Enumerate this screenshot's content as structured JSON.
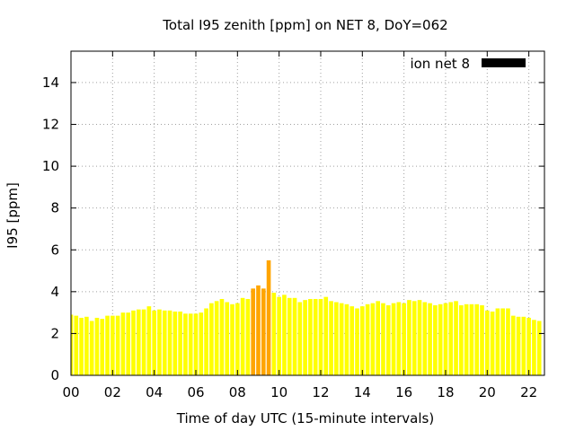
{
  "chart_data": {
    "type": "bar",
    "title": "Total I95 zenith [ppm] on NET 8, DoY=062",
    "xlabel": "Time of day UTC (15-minute intervals)",
    "ylabel": "I95 [ppm]",
    "xlim": [
      0,
      22.75
    ],
    "ylim": [
      0,
      15.5
    ],
    "x_ticks": [
      "00",
      "02",
      "04",
      "06",
      "08",
      "10",
      "12",
      "14",
      "16",
      "18",
      "20",
      "22"
    ],
    "y_ticks": [
      "0",
      "2",
      "4",
      "6",
      "8",
      "10",
      "12",
      "14"
    ],
    "grid": true,
    "legend": {
      "position": "top-right",
      "label": "ion net 8",
      "color": "#000000"
    },
    "bar_interval_hours": 0.25,
    "colors": {
      "normal": "#ffff00",
      "elevated": "#ffa500"
    },
    "series": [
      {
        "values": [
          2.9,
          2.85,
          2.75,
          2.8,
          2.6,
          2.75,
          2.7,
          2.85,
          2.85,
          2.85,
          3.0,
          3.0,
          3.1,
          3.15,
          3.15,
          3.3,
          3.1,
          3.15,
          3.1,
          3.1,
          3.05,
          3.05,
          2.95,
          2.95,
          2.95,
          3.0,
          3.2,
          3.45,
          3.55,
          3.65,
          3.5,
          3.4,
          3.45,
          3.7,
          3.65,
          4.15,
          4.3,
          4.15,
          5.5,
          3.95,
          3.75,
          3.85,
          3.7,
          3.7,
          3.5,
          3.6,
          3.65,
          3.65,
          3.65,
          3.75,
          3.55,
          3.5,
          3.45,
          3.4,
          3.3,
          3.2,
          3.3,
          3.4,
          3.45,
          3.55,
          3.45,
          3.35,
          3.45,
          3.5,
          3.45,
          3.6,
          3.55,
          3.6,
          3.5,
          3.45,
          3.35,
          3.4,
          3.45,
          3.5,
          3.55,
          3.35,
          3.4,
          3.4,
          3.4,
          3.35,
          3.1,
          3.05,
          3.2,
          3.2,
          3.2,
          2.85,
          2.8,
          2.8,
          2.75,
          2.65,
          2.6
        ],
        "elevated_index": [
          35,
          36,
          37,
          38
        ]
      }
    ]
  }
}
